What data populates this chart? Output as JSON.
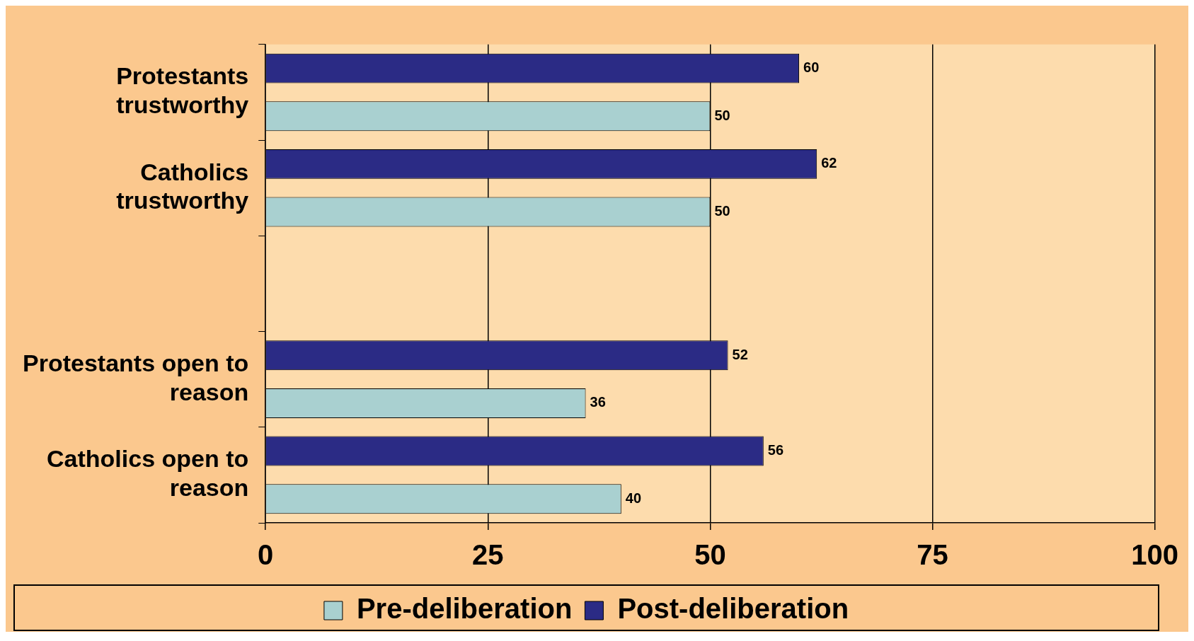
{
  "chart_data": {
    "type": "bar",
    "orientation": "horizontal",
    "categories": [
      "Protestants trustworthy",
      "Catholics trustworthy",
      null,
      "Protestants open to reason",
      "Catholics open to reason"
    ],
    "series": [
      {
        "name": "Pre-deliberation",
        "color": "#a9d0d0",
        "values": [
          50,
          50,
          null,
          36,
          40
        ]
      },
      {
        "name": "Post-deliberation",
        "color": "#2b2b85",
        "values": [
          60,
          62,
          null,
          52,
          56
        ]
      }
    ],
    "xlim": [
      0,
      100
    ],
    "xticks": [
      0,
      25,
      50,
      75,
      100
    ],
    "grid": "x",
    "legend": "bottom",
    "data_labels": true
  }
}
